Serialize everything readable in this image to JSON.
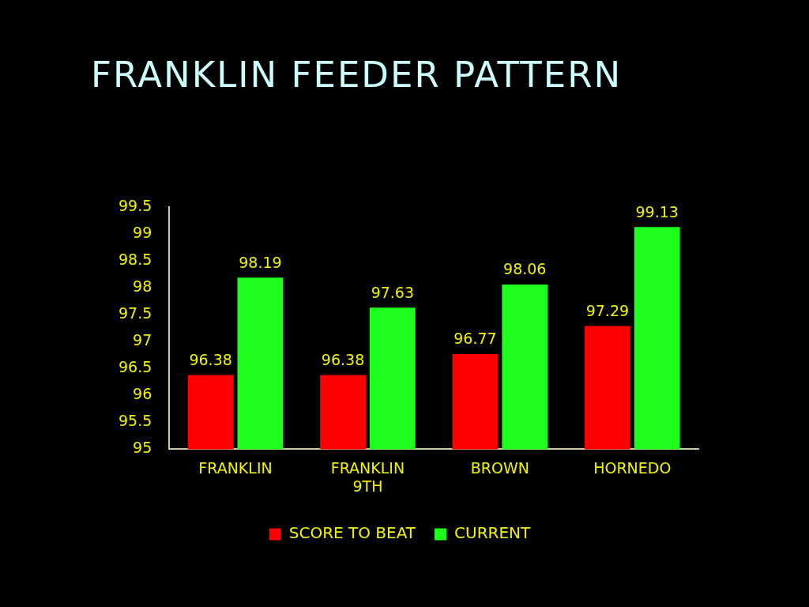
{
  "chart_data": {
    "type": "bar",
    "title": "FRANKLIN FEEDER PATTERN",
    "categories": [
      "FRANKLIN",
      "FRANKLIN 9TH",
      "BROWN",
      "HORNEDO"
    ],
    "series": [
      {
        "name": "SCORE TO BEAT",
        "color": "#ff0000",
        "values": [
          96.38,
          96.38,
          96.77,
          97.29
        ]
      },
      {
        "name": "CURRENT",
        "color": "#1eff1e",
        "values": [
          98.19,
          97.63,
          98.06,
          99.13
        ]
      }
    ],
    "ylim": [
      95,
      99.5
    ],
    "yticks": [
      95,
      95.5,
      96,
      96.5,
      97,
      97.5,
      98,
      98.5,
      99,
      99.5
    ],
    "data_labels": true,
    "legend": "bottom"
  }
}
